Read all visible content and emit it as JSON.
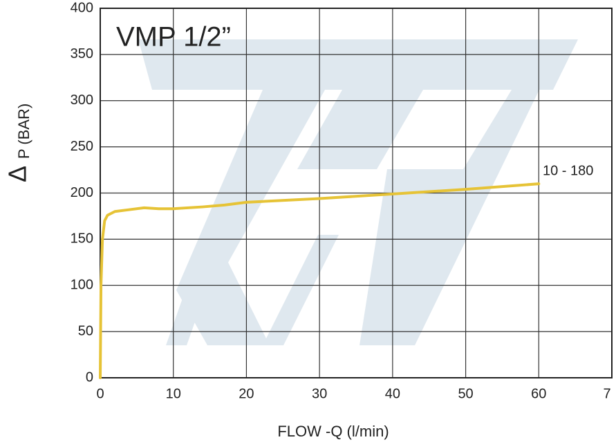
{
  "chart_data": {
    "type": "line",
    "title": "VMP 1/2”",
    "xlabel": "FLOW -Q  (l/min)",
    "ylabel_symbol": "Δ",
    "ylabel": "P (BAR)",
    "annotation": "10 - 180",
    "series": [
      {
        "color": "#e6c336",
        "x": [
          0,
          0.1,
          0.3,
          0.6,
          1,
          2,
          4,
          6,
          8,
          10,
          14,
          17,
          20,
          30,
          40,
          50,
          60
        ],
        "values": [
          0,
          100,
          150,
          170,
          176,
          180,
          182,
          184,
          183,
          183,
          185,
          187,
          190,
          194,
          199,
          204,
          210
        ]
      }
    ],
    "xlim": [
      0,
      70
    ],
    "xticks": [
      0,
      10,
      20,
      30,
      40,
      50,
      60,
      {
        "value": 70,
        "label": "7"
      }
    ],
    "ylim": [
      0,
      400
    ],
    "yticks": [
      0,
      50,
      100,
      150,
      200,
      250,
      300,
      350,
      400
    ],
    "grid": true
  }
}
